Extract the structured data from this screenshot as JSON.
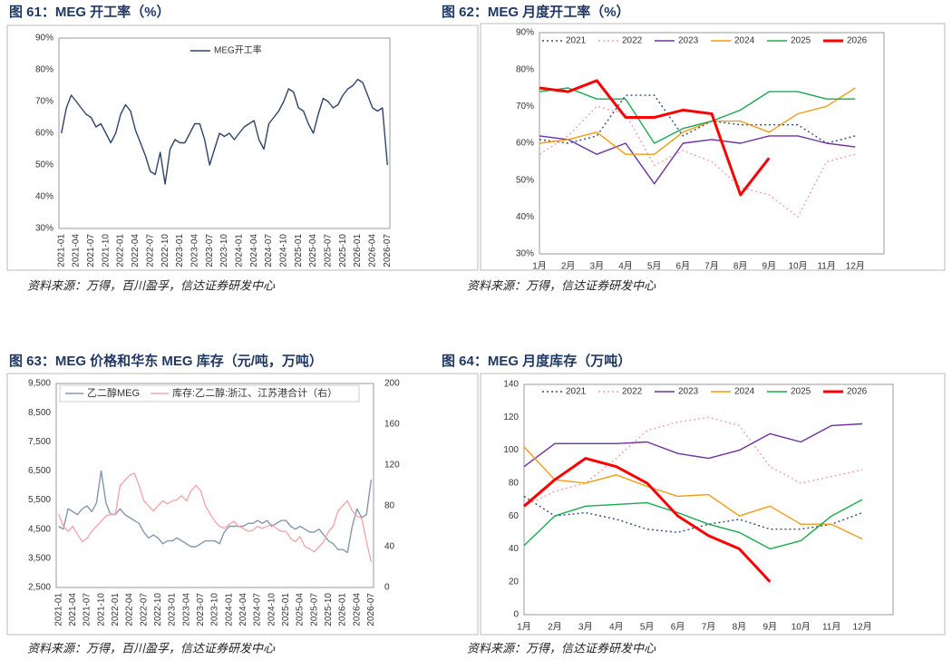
{
  "chart_data": [
    {
      "type": "line",
      "title": "图 61：MEG 开工率（%）",
      "source": "资料来源：万得，百川盈孚，信达证券研发中心",
      "categories": [
        "2021-01",
        null,
        null,
        "2021-04",
        null,
        null,
        "2021-07",
        null,
        null,
        "2021-10",
        null,
        null,
        "2022-01",
        null,
        null,
        "2022-04",
        null,
        null,
        "2022-07",
        null,
        null,
        "2022-10",
        null,
        null,
        "2023-01",
        null,
        null,
        "2023-04",
        null,
        null,
        "2023-07",
        null,
        null,
        "2023-10",
        null,
        null,
        "2024-01",
        null,
        null,
        "2024-04",
        null,
        null,
        "2024-07",
        null,
        null,
        "2024-10",
        null,
        null,
        "2025-01",
        null,
        null,
        "2025-04",
        null,
        null,
        "2025-07",
        null,
        null,
        "2025-10",
        null,
        null,
        "2026-01",
        null,
        null,
        "2026-04",
        null,
        null,
        "2026-07"
      ],
      "series": [
        {
          "name": "MEG开工率",
          "color": "#2f4468",
          "values": [
            60,
            68,
            72,
            70,
            68,
            66,
            65,
            62,
            63,
            60,
            57,
            60,
            66,
            69,
            67,
            61,
            57,
            53,
            48,
            47,
            54,
            44,
            55,
            58,
            57,
            57,
            60,
            63,
            63,
            58,
            50,
            55,
            60,
            59,
            60,
            58,
            60,
            62,
            63,
            64,
            58,
            55,
            63,
            65,
            67,
            70,
            74,
            73,
            68,
            67,
            63,
            60,
            66,
            71,
            70,
            68,
            69,
            72,
            74,
            75,
            77,
            76,
            72,
            68,
            67,
            68,
            50
          ]
        }
      ],
      "ylim": [
        30,
        90
      ],
      "yticks": [
        {
          "value": 30,
          "label": "30%"
        },
        {
          "value": 40,
          "label": "40%"
        },
        {
          "value": 50,
          "label": "50%"
        },
        {
          "value": 60,
          "label": "60%"
        },
        {
          "value": 70,
          "label": "70%"
        },
        {
          "value": 80,
          "label": "80%"
        },
        {
          "value": 90,
          "label": "90%"
        }
      ],
      "legend": "top"
    },
    {
      "type": "line",
      "title": "图 62：MEG 月度开工率（%）",
      "source": "资料来源：万得，信达证券研发中心",
      "categories": [
        "1月",
        "2月",
        "3月",
        "4月",
        "5月",
        "6月",
        "7月",
        "8月",
        "9月",
        "10月",
        "11月",
        "12月"
      ],
      "series": [
        {
          "name": "2021",
          "color": "#2f4b7c",
          "style": "dotted",
          "values": [
            61,
            60,
            62,
            73,
            73,
            62,
            66,
            65,
            65,
            65,
            60,
            62
          ]
        },
        {
          "name": "2022",
          "color": "#f4a0a8",
          "style": "dotted",
          "values": [
            57,
            62,
            70,
            68,
            54,
            58,
            55,
            48,
            46,
            40,
            55,
            57
          ]
        },
        {
          "name": "2023",
          "color": "#7030a0",
          "style": "solid",
          "values": [
            62,
            61,
            57,
            60,
            49,
            60,
            61,
            60,
            62,
            62,
            60,
            59
          ]
        },
        {
          "name": "2024",
          "color": "#f39c12",
          "style": "solid",
          "values": [
            60,
            61,
            63,
            57,
            57,
            63,
            66,
            66,
            63,
            68,
            70,
            75
          ]
        },
        {
          "name": "2025",
          "color": "#1aab50",
          "style": "solid",
          "values": [
            74,
            75,
            72,
            72,
            60,
            64,
            66,
            69,
            74,
            74,
            72,
            72
          ]
        },
        {
          "name": "2026",
          "color": "#ff0000",
          "style": "bold",
          "values": [
            75,
            74,
            77,
            67,
            67,
            69,
            68,
            46,
            56,
            null,
            null,
            null
          ]
        }
      ],
      "ylim": [
        30,
        90
      ],
      "yticks": [
        {
          "value": 30,
          "label": "30%"
        },
        {
          "value": 40,
          "label": "40%"
        },
        {
          "value": 50,
          "label": "50%"
        },
        {
          "value": 60,
          "label": "60%"
        },
        {
          "value": 70,
          "label": "70%"
        },
        {
          "value": 80,
          "label": "80%"
        },
        {
          "value": 90,
          "label": "90%"
        }
      ],
      "legend": "top"
    },
    {
      "type": "line",
      "title": "图 63：MEG 价格和华东 MEG 库存（元/吨，万吨）",
      "source": "资料来源：万得，百川盈孚，信达证券研发中心",
      "categories": [
        "2021-01",
        null,
        null,
        "2021-04",
        null,
        null,
        "2021-07",
        null,
        null,
        "2021-10",
        null,
        null,
        "2022-01",
        null,
        null,
        "2022-04",
        null,
        null,
        "2022-07",
        null,
        null,
        "2022-10",
        null,
        null,
        "2023-01",
        null,
        null,
        "2023-04",
        null,
        null,
        "2023-07",
        null,
        null,
        "2023-10",
        null,
        null,
        "2024-01",
        null,
        null,
        "2024-04",
        null,
        null,
        "2024-07",
        null,
        null,
        "2024-10",
        null,
        null,
        "2025-01",
        null,
        null,
        "2025-04",
        null,
        null,
        "2025-07",
        null,
        null,
        "2025-10",
        null,
        null,
        "2026-01",
        null,
        null,
        "2026-04",
        null,
        null,
        "2026-07"
      ],
      "series": [
        {
          "name": "乙二醇MEG",
          "color": "#8497b0",
          "values": [
            4600,
            4500,
            5200,
            5100,
            5000,
            5200,
            5300,
            5100,
            5400,
            6500,
            5400,
            5000,
            5000,
            5200,
            5000,
            4900,
            4800,
            4700,
            4400,
            4200,
            4300,
            4200,
            4000,
            4100,
            4100,
            4200,
            4100,
            4000,
            3900,
            3900,
            4000,
            4100,
            4100,
            4100,
            4000,
            4400,
            4600,
            4600,
            4600,
            4600,
            4700,
            4700,
            4800,
            4700,
            4800,
            4600,
            4700,
            4800,
            4800,
            4600,
            4500,
            4600,
            4500,
            4400,
            4400,
            4500,
            4300,
            4100,
            4000,
            3800,
            3800,
            3700,
            4600,
            5200,
            4900,
            5000,
            6200
          ]
        },
        {
          "name": "库存:乙二醇:浙江、江苏港合计（右）",
          "color": "#f4a8ad",
          "axis": "y2",
          "values": [
            72,
            60,
            55,
            60,
            52,
            45,
            48,
            55,
            60,
            65,
            70,
            72,
            72,
            100,
            105,
            110,
            112,
            100,
            85,
            80,
            75,
            80,
            85,
            82,
            85,
            86,
            90,
            85,
            95,
            100,
            95,
            80,
            72,
            65,
            60,
            58,
            62,
            65,
            60,
            58,
            55,
            56,
            60,
            58,
            60,
            62,
            58,
            55,
            55,
            48,
            45,
            50,
            40,
            38,
            35,
            40,
            45,
            55,
            60,
            75,
            80,
            85,
            75,
            70,
            68,
            45,
            25
          ]
        }
      ],
      "ylim": [
        2500,
        9500
      ],
      "yticks": [
        {
          "value": 2500,
          "label": "2,500"
        },
        {
          "value": 3500,
          "label": "3,500"
        },
        {
          "value": 4500,
          "label": "4,500"
        },
        {
          "value": 5500,
          "label": "5,500"
        },
        {
          "value": 6500,
          "label": "6,500"
        },
        {
          "value": 7500,
          "label": "7,500"
        },
        {
          "value": 8500,
          "label": "8,500"
        },
        {
          "value": 9500,
          "label": "9,500"
        }
      ],
      "y2lim": [
        0,
        200
      ],
      "y2ticks": [
        0,
        40,
        80,
        120,
        160,
        200
      ],
      "legend": "top-left"
    },
    {
      "type": "line",
      "title": "图 64：MEG 月度库存（万吨）",
      "source": "资料来源：万得，信达证券研发中心",
      "categories": [
        "1月",
        "2月",
        "3月",
        "4月",
        "5月",
        "6月",
        "7月",
        "8月",
        "9月",
        "10月",
        "11月",
        "12月"
      ],
      "series": [
        {
          "name": "2021",
          "color": "#2f4b7c",
          "style": "dotted",
          "values": [
            72,
            60,
            62,
            58,
            52,
            50,
            55,
            58,
            52,
            52,
            55,
            62
          ]
        },
        {
          "name": "2022",
          "color": "#f4a0a8",
          "style": "dotted",
          "values": [
            66,
            75,
            80,
            95,
            112,
            117,
            120,
            115,
            90,
            80,
            84,
            88
          ]
        },
        {
          "name": "2023",
          "color": "#7030a0",
          "style": "solid",
          "values": [
            90,
            104,
            104,
            104,
            105,
            98,
            95,
            100,
            110,
            105,
            115,
            116
          ]
        },
        {
          "name": "2024",
          "color": "#f39c12",
          "style": "solid",
          "values": [
            102,
            82,
            80,
            85,
            78,
            72,
            73,
            60,
            66,
            55,
            55,
            46
          ]
        },
        {
          "name": "2025",
          "color": "#1aab50",
          "style": "solid",
          "values": [
            42,
            60,
            66,
            67,
            68,
            62,
            55,
            50,
            40,
            45,
            60,
            70
          ]
        },
        {
          "name": "2026",
          "color": "#ff0000",
          "style": "bold",
          "values": [
            66,
            82,
            95,
            90,
            80,
            60,
            48,
            40,
            20,
            null,
            null,
            null
          ]
        }
      ],
      "ylim": [
        0,
        140
      ],
      "yticks": [
        0,
        20,
        40,
        60,
        80,
        100,
        120,
        140
      ],
      "legend": "top"
    }
  ]
}
